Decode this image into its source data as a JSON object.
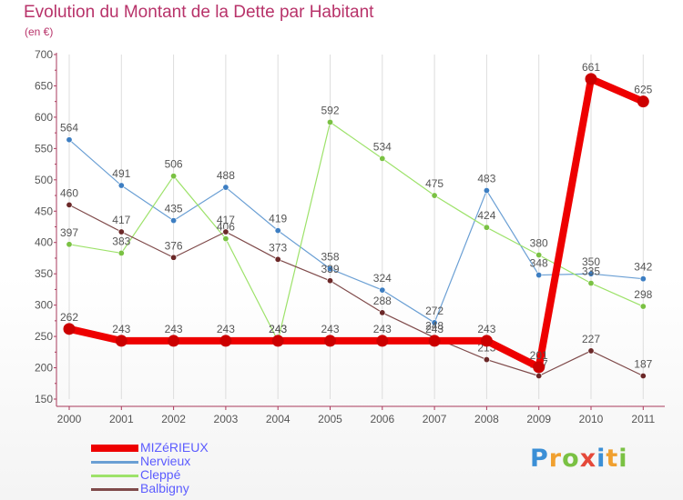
{
  "title": "Evolution du Montant de la Dette par Habitant",
  "subtitle": "(en €)",
  "logo": {
    "text": "Proxiti"
  },
  "colors": {
    "title": "#b8336a",
    "axis": "#a93a5c",
    "grid_line": "#dddddd",
    "legend_text": "#5c5cff"
  },
  "chart_data": {
    "type": "line",
    "title": "Evolution du Montant de la Dette par Habitant",
    "subtitle": "(en €)",
    "xlabel": "",
    "ylabel": "",
    "x": [
      "2000",
      "2001",
      "2002",
      "2003",
      "2004",
      "2005",
      "2006",
      "2007",
      "2008",
      "2009",
      "2010",
      "2011"
    ],
    "ylim": [
      150,
      700
    ],
    "yticks": [
      150,
      200,
      250,
      300,
      350,
      400,
      450,
      500,
      550,
      600,
      650,
      700
    ],
    "grid": "vertical",
    "legend_position": "bottom-left",
    "series": [
      {
        "name": "MIZéRIEUX",
        "color": "#ee0000",
        "marker": "#cc0000",
        "width": 8,
        "values": [
          262,
          243,
          243,
          243,
          243,
          243,
          243,
          243,
          243,
          201,
          661,
          625
        ]
      },
      {
        "name": "Nervieux",
        "color": "#6a9fd4",
        "marker": "#3d7ec2",
        "width": 1.2,
        "values": [
          564,
          491,
          435,
          488,
          419,
          358,
          324,
          272,
          483,
          348,
          350,
          342
        ]
      },
      {
        "name": "Cleppé",
        "color": "#9de26a",
        "marker": "#7ac143",
        "width": 1.2,
        "values": [
          397,
          383,
          506,
          406,
          243,
          592,
          534,
          475,
          424,
          380,
          335,
          298
        ]
      },
      {
        "name": "Balbigny",
        "color": "#7f4a4a",
        "marker": "#6b2828",
        "width": 1.2,
        "values": [
          460,
          417,
          376,
          417,
          373,
          339,
          288,
          248,
          213,
          187,
          227,
          187
        ]
      }
    ],
    "draw_order": [
      "Nervieux",
      "Cleppé",
      "Balbigny",
      "MIZéRIEUX"
    ]
  }
}
